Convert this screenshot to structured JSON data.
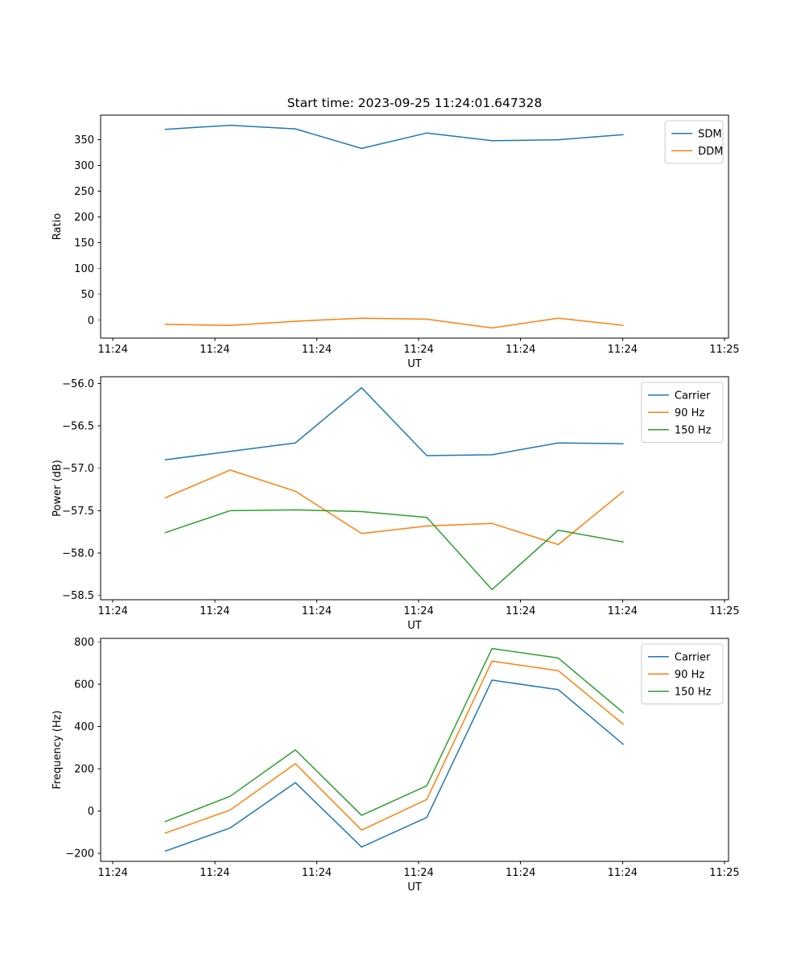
{
  "figure": {
    "title": "Start time: 2023-09-25 11:24:01.647328",
    "background": "#ffffff",
    "text_color": "#000000",
    "palette": {
      "blue": "#1f77b4",
      "orange": "#ff7f0e",
      "green": "#2ca02c"
    }
  },
  "chart_data": [
    {
      "type": "line",
      "title": "Start time: 2023-09-25 11:24:01.647328",
      "xlabel": "UT",
      "ylabel": "Ratio",
      "grid": false,
      "legend_position": "upper right",
      "x_seconds": [
        5.1,
        11.5,
        17.9,
        24.4,
        30.8,
        37.2,
        43.7,
        50.1
      ],
      "xlim": [
        -1.2,
        60.4
      ],
      "x_ticks": [
        0,
        10,
        20,
        30,
        40,
        50,
        60
      ],
      "x_tick_labels": [
        "11:24",
        "11:24",
        "11:24",
        "11:24",
        "11:24",
        "11:24",
        "11:25"
      ],
      "ylim": [
        -34.7,
        397.7
      ],
      "y_ticks": [
        0,
        50,
        100,
        150,
        200,
        250,
        300,
        350
      ],
      "y_tick_labels": [
        "0",
        "50",
        "100",
        "150",
        "200",
        "250",
        "300",
        "350"
      ],
      "series": [
        {
          "name": "SDM",
          "color": "#1f77b4",
          "values": [
            370,
            378,
            371,
            333,
            363,
            348,
            350,
            360
          ]
        },
        {
          "name": "DDM",
          "color": "#ff7f0e",
          "values": [
            -8,
            -10,
            -2,
            4,
            2,
            -15,
            4,
            -10
          ]
        }
      ]
    },
    {
      "type": "line",
      "title": "",
      "xlabel": "UT",
      "ylabel": "Power (dB)",
      "grid": false,
      "legend_position": "upper right",
      "x_seconds": [
        5.1,
        11.5,
        17.9,
        24.4,
        30.8,
        37.2,
        43.7,
        50.1
      ],
      "xlim": [
        -1.2,
        60.4
      ],
      "x_ticks": [
        0,
        10,
        20,
        30,
        40,
        50,
        60
      ],
      "x_tick_labels": [
        "11:24",
        "11:24",
        "11:24",
        "11:24",
        "11:24",
        "11:24",
        "11:25"
      ],
      "ylim": [
        -58.55,
        -55.92
      ],
      "y_ticks": [
        -58.5,
        -58.0,
        -57.5,
        -57.0,
        -56.5,
        -56.0
      ],
      "y_tick_labels": [
        "−58.5",
        "−58.0",
        "−57.5",
        "−57.0",
        "−56.5",
        "−56.0"
      ],
      "series": [
        {
          "name": "Carrier",
          "color": "#1f77b4",
          "values": [
            -56.9,
            -56.8,
            -56.7,
            -56.05,
            -56.85,
            -56.84,
            -56.7,
            -56.71
          ]
        },
        {
          "name": "90 Hz",
          "color": "#ff7f0e",
          "values": [
            -57.35,
            -57.02,
            -57.27,
            -57.77,
            -57.68,
            -57.65,
            -57.9,
            -57.27
          ]
        },
        {
          "name": "150 Hz",
          "color": "#2ca02c",
          "values": [
            -57.76,
            -57.5,
            -57.49,
            -57.51,
            -57.58,
            -58.43,
            -57.73,
            -57.87
          ]
        }
      ]
    },
    {
      "type": "line",
      "title": "",
      "xlabel": "UT",
      "ylabel": "Frequency (Hz)",
      "grid": false,
      "legend_position": "upper right",
      "x_seconds": [
        5.1,
        11.5,
        17.9,
        24.4,
        30.8,
        37.2,
        43.7,
        50.1
      ],
      "xlim": [
        -1.2,
        60.4
      ],
      "x_ticks": [
        0,
        10,
        20,
        30,
        40,
        50,
        60
      ],
      "x_tick_labels": [
        "11:24",
        "11:24",
        "11:24",
        "11:24",
        "11:24",
        "11:24",
        "11:25"
      ],
      "ylim": [
        -238,
        818
      ],
      "y_ticks": [
        -200,
        0,
        200,
        400,
        600,
        800
      ],
      "y_tick_labels": [
        "−200",
        "0",
        "200",
        "400",
        "600",
        "800"
      ],
      "series": [
        {
          "name": "Carrier",
          "color": "#1f77b4",
          "values": [
            -190,
            -80,
            135,
            -170,
            -30,
            620,
            575,
            315
          ]
        },
        {
          "name": "90 Hz",
          "color": "#ff7f0e",
          "values": [
            -105,
            5,
            225,
            -90,
            55,
            710,
            665,
            410
          ]
        },
        {
          "name": "150 Hz",
          "color": "#2ca02c",
          "values": [
            -50,
            70,
            290,
            -20,
            120,
            770,
            725,
            465
          ]
        }
      ]
    }
  ]
}
